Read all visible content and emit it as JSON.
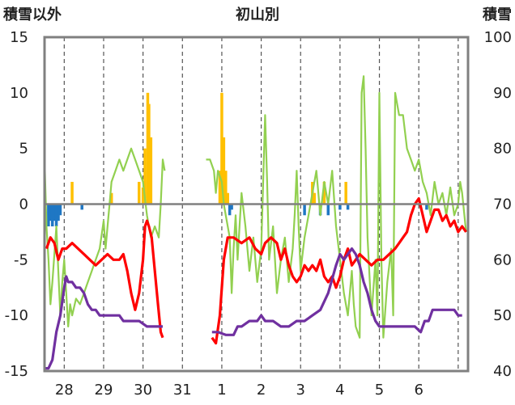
{
  "chart_data": {
    "type": "line",
    "title": "初山別",
    "left_axis_label": "積雪以外",
    "right_axis_label": "積雪",
    "y_left": {
      "ylim": [
        -15,
        15
      ],
      "ticks": [
        "15",
        "10",
        "5",
        "0",
        "-5",
        "-10",
        "-15"
      ]
    },
    "y_right": {
      "ylim": [
        40,
        100
      ],
      "ticks": [
        "100",
        "90",
        "80",
        "70",
        "60",
        "50",
        "40"
      ]
    },
    "x_range": [
      0,
      10.75
    ],
    "day_boundaries": [
      0.5,
      1.5,
      2.5,
      3.5,
      4.5,
      5.5,
      6.5,
      7.5,
      8.5,
      9.5,
      10.5
    ],
    "day_labels": [
      {
        "text": "28",
        "at": 0.5
      },
      {
        "text": "29",
        "at": 1.5
      },
      {
        "text": "30",
        "at": 2.5
      },
      {
        "text": "31",
        "at": 3.5
      },
      {
        "text": "1",
        "at": 4.5
      },
      {
        "text": "2",
        "at": 5.5
      },
      {
        "text": "3",
        "at": 6.5
      },
      {
        "text": "4",
        "at": 7.5
      },
      {
        "text": "5",
        "at": 8.5
      },
      {
        "text": "6",
        "at": 9.5
      }
    ],
    "grid": "dashed vertical at day boundaries",
    "colors": {
      "precip_bar": "#ffc000",
      "negative_bar": "#1f77c4",
      "temperature": "#ff0000",
      "humidity_like": "#92d050",
      "snow_depth": "#7030a0",
      "zero_line": "#808080",
      "frame": "#808080",
      "grid": "#555555"
    },
    "series": [
      {
        "key": "temperature",
        "axis": "left",
        "points": [
          [
            0.05,
            -4
          ],
          [
            0.15,
            -3
          ],
          [
            0.25,
            -3.5
          ],
          [
            0.35,
            -5
          ],
          [
            0.45,
            -4
          ],
          [
            0.55,
            -4
          ],
          [
            0.7,
            -3.5
          ],
          [
            0.85,
            -4
          ],
          [
            1.0,
            -4.5
          ],
          [
            1.15,
            -5
          ],
          [
            1.3,
            -5.5
          ],
          [
            1.45,
            -5
          ],
          [
            1.6,
            -4.5
          ],
          [
            1.75,
            -5
          ],
          [
            1.9,
            -5
          ],
          [
            2.0,
            -4.5
          ],
          [
            2.1,
            -6
          ],
          [
            2.2,
            -8
          ],
          [
            2.3,
            -9.5
          ],
          [
            2.4,
            -8
          ],
          [
            2.5,
            -5
          ],
          [
            2.55,
            -2
          ],
          [
            2.6,
            -1.5
          ],
          [
            2.65,
            -2
          ],
          [
            2.72,
            -3
          ],
          [
            2.8,
            -6
          ],
          [
            2.88,
            -9
          ],
          [
            2.95,
            -11.5
          ],
          [
            3.0,
            -12
          ]
        ],
        "gap_after": true,
        "points2": [
          [
            4.25,
            -12
          ],
          [
            4.35,
            -12.5
          ],
          [
            4.45,
            -10
          ],
          [
            4.55,
            -5
          ],
          [
            4.65,
            -3
          ],
          [
            4.8,
            -3
          ],
          [
            5.0,
            -3.5
          ],
          [
            5.2,
            -3
          ],
          [
            5.35,
            -4
          ],
          [
            5.5,
            -4.5
          ],
          [
            5.6,
            -3.5
          ],
          [
            5.75,
            -3
          ],
          [
            5.9,
            -3.5
          ],
          [
            6.0,
            -5
          ],
          [
            6.1,
            -4
          ],
          [
            6.2,
            -5.5
          ],
          [
            6.3,
            -6.5
          ],
          [
            6.4,
            -7
          ],
          [
            6.5,
            -6.5
          ],
          [
            6.6,
            -5.5
          ],
          [
            6.7,
            -6
          ],
          [
            6.8,
            -5.5
          ],
          [
            6.9,
            -6
          ],
          [
            7.0,
            -5
          ],
          [
            7.1,
            -6.5
          ],
          [
            7.2,
            -7
          ],
          [
            7.3,
            -6.5
          ],
          [
            7.4,
            -7.5
          ],
          [
            7.5,
            -6.5
          ],
          [
            7.6,
            -5
          ],
          [
            7.7,
            -4
          ],
          [
            7.8,
            -5.5
          ],
          [
            7.9,
            -5
          ],
          [
            8.0,
            -4.5
          ],
          [
            8.15,
            -5
          ],
          [
            8.3,
            -5.5
          ],
          [
            8.45,
            -5
          ],
          [
            8.6,
            -5
          ],
          [
            8.75,
            -4.5
          ],
          [
            8.9,
            -4
          ],
          [
            9.0,
            -3.5
          ],
          [
            9.1,
            -3
          ],
          [
            9.2,
            -2.5
          ],
          [
            9.3,
            -1
          ],
          [
            9.4,
            0
          ],
          [
            9.5,
            0.5
          ],
          [
            9.6,
            -1
          ],
          [
            9.7,
            -2.5
          ],
          [
            9.8,
            -1.5
          ],
          [
            9.9,
            -0.5
          ],
          [
            10.0,
            -0.5
          ],
          [
            10.1,
            -1.5
          ],
          [
            10.2,
            -1
          ],
          [
            10.3,
            -2
          ],
          [
            10.4,
            -1.5
          ],
          [
            10.5,
            -2.5
          ],
          [
            10.6,
            -2
          ],
          [
            10.7,
            -2.5
          ]
        ]
      },
      {
        "key": "humidity_like",
        "axis": "left",
        "points": [
          [
            0.0,
            4
          ],
          [
            0.05,
            -2
          ],
          [
            0.1,
            -5
          ],
          [
            0.15,
            -9
          ],
          [
            0.2,
            -7
          ],
          [
            0.3,
            -2
          ],
          [
            0.35,
            -6
          ],
          [
            0.4,
            -10
          ],
          [
            0.45,
            -7
          ],
          [
            0.5,
            -5
          ],
          [
            0.55,
            -8
          ],
          [
            0.6,
            -11
          ],
          [
            0.65,
            -9
          ],
          [
            0.7,
            -10
          ],
          [
            0.8,
            -8.5
          ],
          [
            0.9,
            -9
          ],
          [
            1.0,
            -8
          ],
          [
            1.1,
            -7
          ],
          [
            1.2,
            -6
          ],
          [
            1.3,
            -5
          ],
          [
            1.4,
            -4
          ],
          [
            1.5,
            -1.5
          ],
          [
            1.55,
            -4
          ],
          [
            1.6,
            -2
          ],
          [
            1.65,
            0
          ],
          [
            1.7,
            2
          ],
          [
            1.8,
            3
          ],
          [
            1.9,
            4
          ],
          [
            2.0,
            3
          ],
          [
            2.1,
            4
          ],
          [
            2.2,
            5
          ],
          [
            2.3,
            4
          ],
          [
            2.4,
            3
          ],
          [
            2.5,
            2
          ],
          [
            2.6,
            -1
          ],
          [
            2.65,
            -2
          ],
          [
            2.7,
            -3
          ],
          [
            2.8,
            -2
          ],
          [
            2.9,
            -3
          ],
          [
            2.95,
            0
          ],
          [
            3.0,
            4
          ],
          [
            3.05,
            3
          ]
        ],
        "gap_after": true,
        "points2": [
          [
            4.1,
            4
          ],
          [
            4.2,
            4
          ],
          [
            4.3,
            3
          ],
          [
            4.35,
            1
          ],
          [
            4.4,
            3
          ],
          [
            4.5,
            2
          ],
          [
            4.55,
            0
          ],
          [
            4.6,
            -1
          ],
          [
            4.7,
            -3
          ],
          [
            4.75,
            -8
          ],
          [
            4.8,
            -4
          ],
          [
            4.85,
            -1
          ],
          [
            4.9,
            -5
          ],
          [
            4.95,
            -2
          ],
          [
            5.0,
            1
          ],
          [
            5.1,
            -2
          ],
          [
            5.2,
            -6
          ],
          [
            5.3,
            -3
          ],
          [
            5.4,
            -7
          ],
          [
            5.5,
            -4
          ],
          [
            5.6,
            8
          ],
          [
            5.65,
            2
          ],
          [
            5.7,
            -5
          ],
          [
            5.8,
            -2
          ],
          [
            5.9,
            -8
          ],
          [
            6.0,
            -5
          ],
          [
            6.1,
            -3
          ],
          [
            6.2,
            -7
          ],
          [
            6.3,
            -4
          ],
          [
            6.35,
            -1
          ],
          [
            6.4,
            3
          ],
          [
            6.45,
            -2
          ],
          [
            6.5,
            -6
          ],
          [
            6.6,
            -3
          ],
          [
            6.7,
            -1
          ],
          [
            6.8,
            1
          ],
          [
            6.9,
            3
          ],
          [
            7.0,
            -1
          ],
          [
            7.1,
            2
          ],
          [
            7.2,
            0
          ],
          [
            7.3,
            3
          ],
          [
            7.4,
            -2
          ],
          [
            7.5,
            -5
          ],
          [
            7.6,
            -8
          ],
          [
            7.7,
            -10
          ],
          [
            7.8,
            -6
          ],
          [
            7.85,
            -9
          ],
          [
            7.9,
            -11
          ],
          [
            8.0,
            -12
          ],
          [
            8.05,
            10
          ],
          [
            8.1,
            11.5
          ],
          [
            8.15,
            5
          ],
          [
            8.2,
            -3
          ],
          [
            8.3,
            -10
          ],
          [
            8.4,
            -5
          ],
          [
            8.45,
            -10
          ],
          [
            8.5,
            10
          ],
          [
            8.55,
            -5
          ],
          [
            8.6,
            -12
          ],
          [
            8.7,
            -7
          ],
          [
            8.8,
            -4
          ],
          [
            8.85,
            -10
          ],
          [
            8.9,
            10
          ],
          [
            9.0,
            8
          ],
          [
            9.1,
            8
          ],
          [
            9.2,
            5
          ],
          [
            9.3,
            4
          ],
          [
            9.4,
            3
          ],
          [
            9.5,
            4
          ],
          [
            9.6,
            2
          ],
          [
            9.7,
            1
          ],
          [
            9.8,
            -1
          ],
          [
            9.9,
            2
          ],
          [
            10.0,
            0
          ],
          [
            10.1,
            1
          ],
          [
            10.2,
            -1
          ],
          [
            10.3,
            1.5
          ],
          [
            10.4,
            -1
          ],
          [
            10.5,
            0
          ],
          [
            10.55,
            2
          ],
          [
            10.6,
            1
          ],
          [
            10.7,
            -2.5
          ]
        ]
      },
      {
        "key": "snow_depth",
        "axis": "right",
        "points": [
          [
            0.0,
            40.5
          ],
          [
            0.1,
            40.5
          ],
          [
            0.2,
            42
          ],
          [
            0.3,
            47
          ],
          [
            0.4,
            50
          ],
          [
            0.5,
            55
          ],
          [
            0.55,
            57
          ],
          [
            0.6,
            56
          ],
          [
            0.7,
            56
          ],
          [
            0.8,
            55
          ],
          [
            0.9,
            55
          ],
          [
            1.0,
            54
          ],
          [
            1.1,
            52
          ],
          [
            1.2,
            51
          ],
          [
            1.3,
            51
          ],
          [
            1.4,
            50
          ],
          [
            1.5,
            50
          ],
          [
            1.7,
            50
          ],
          [
            1.9,
            50
          ],
          [
            2.0,
            49
          ],
          [
            2.2,
            49
          ],
          [
            2.4,
            49
          ],
          [
            2.6,
            48
          ],
          [
            2.8,
            48
          ],
          [
            3.0,
            48
          ]
        ],
        "gap_after": true,
        "points2": [
          [
            4.25,
            47
          ],
          [
            4.4,
            47
          ],
          [
            4.6,
            46.5
          ],
          [
            4.8,
            46.5
          ],
          [
            4.9,
            48
          ],
          [
            5.0,
            48
          ],
          [
            5.2,
            49
          ],
          [
            5.4,
            49
          ],
          [
            5.5,
            50
          ],
          [
            5.6,
            49
          ],
          [
            5.8,
            49
          ],
          [
            6.0,
            48
          ],
          [
            6.2,
            48
          ],
          [
            6.4,
            49
          ],
          [
            6.6,
            49
          ],
          [
            6.8,
            50
          ],
          [
            7.0,
            51
          ],
          [
            7.2,
            54
          ],
          [
            7.4,
            59
          ],
          [
            7.5,
            61
          ],
          [
            7.6,
            60
          ],
          [
            7.7,
            61
          ],
          [
            7.8,
            62
          ],
          [
            7.9,
            61
          ],
          [
            8.0,
            59
          ],
          [
            8.1,
            56
          ],
          [
            8.2,
            54
          ],
          [
            8.3,
            51
          ],
          [
            8.4,
            49
          ],
          [
            8.5,
            48
          ],
          [
            8.6,
            48
          ],
          [
            8.8,
            48
          ],
          [
            9.0,
            48
          ],
          [
            9.2,
            48
          ],
          [
            9.4,
            48
          ],
          [
            9.55,
            47
          ],
          [
            9.65,
            49
          ],
          [
            9.75,
            49
          ],
          [
            9.85,
            51
          ],
          [
            10.0,
            51
          ],
          [
            10.2,
            51
          ],
          [
            10.4,
            51
          ],
          [
            10.5,
            50
          ],
          [
            10.6,
            50
          ]
        ]
      }
    ],
    "bars": [
      [
        0.1,
        -2
      ],
      [
        0.15,
        -1.5
      ],
      [
        0.2,
        -2
      ],
      [
        0.25,
        -1.5
      ],
      [
        0.3,
        -2
      ],
      [
        0.35,
        -1.5
      ],
      [
        0.4,
        -1
      ],
      [
        0.7,
        2
      ],
      [
        0.95,
        -0.5
      ],
      [
        1.7,
        1
      ],
      [
        2.4,
        2
      ],
      [
        2.5,
        1.5
      ],
      [
        2.55,
        5
      ],
      [
        2.62,
        10
      ],
      [
        2.65,
        9
      ],
      [
        2.7,
        6
      ],
      [
        4.45,
        3
      ],
      [
        4.5,
        10
      ],
      [
        4.55,
        6
      ],
      [
        4.6,
        3
      ],
      [
        4.65,
        1
      ],
      [
        4.7,
        -1
      ],
      [
        4.75,
        -0.5
      ],
      [
        6.6,
        -1
      ],
      [
        6.8,
        2
      ],
      [
        6.85,
        1
      ],
      [
        7.0,
        -1
      ],
      [
        7.1,
        2
      ],
      [
        7.2,
        -1
      ],
      [
        7.5,
        -0.5
      ],
      [
        7.65,
        2
      ],
      [
        7.7,
        -0.5
      ],
      [
        9.7,
        -0.5
      ]
    ]
  }
}
